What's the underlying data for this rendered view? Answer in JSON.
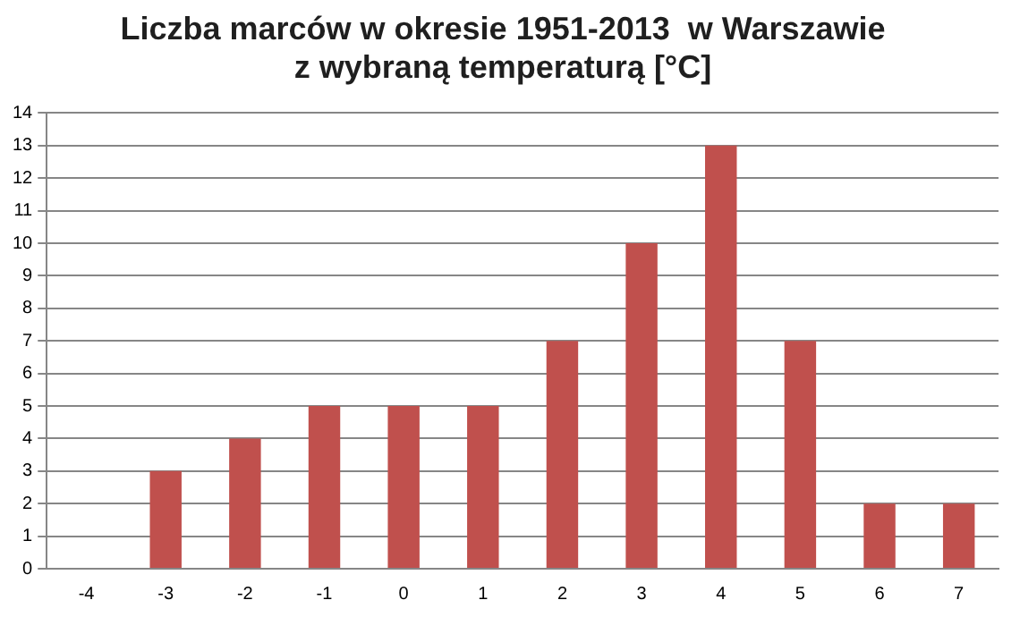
{
  "chart_data": {
    "type": "bar",
    "title": "Liczba marców w okresie 1951-2013  w Warszawie\nz wybraną temperaturą [°C]",
    "categories": [
      "-4",
      "-3",
      "-2",
      "-1",
      "0",
      "1",
      "2",
      "3",
      "4",
      "5",
      "6",
      "7"
    ],
    "values": [
      0,
      3,
      4,
      5,
      5,
      5,
      7,
      10,
      13,
      7,
      2,
      2
    ],
    "color": "#c0504d",
    "ylim": [
      0,
      14
    ],
    "yticks": [
      0,
      1,
      2,
      3,
      4,
      5,
      6,
      7,
      8,
      9,
      10,
      11,
      12,
      13,
      14
    ],
    "grid": "y",
    "legend": false
  }
}
